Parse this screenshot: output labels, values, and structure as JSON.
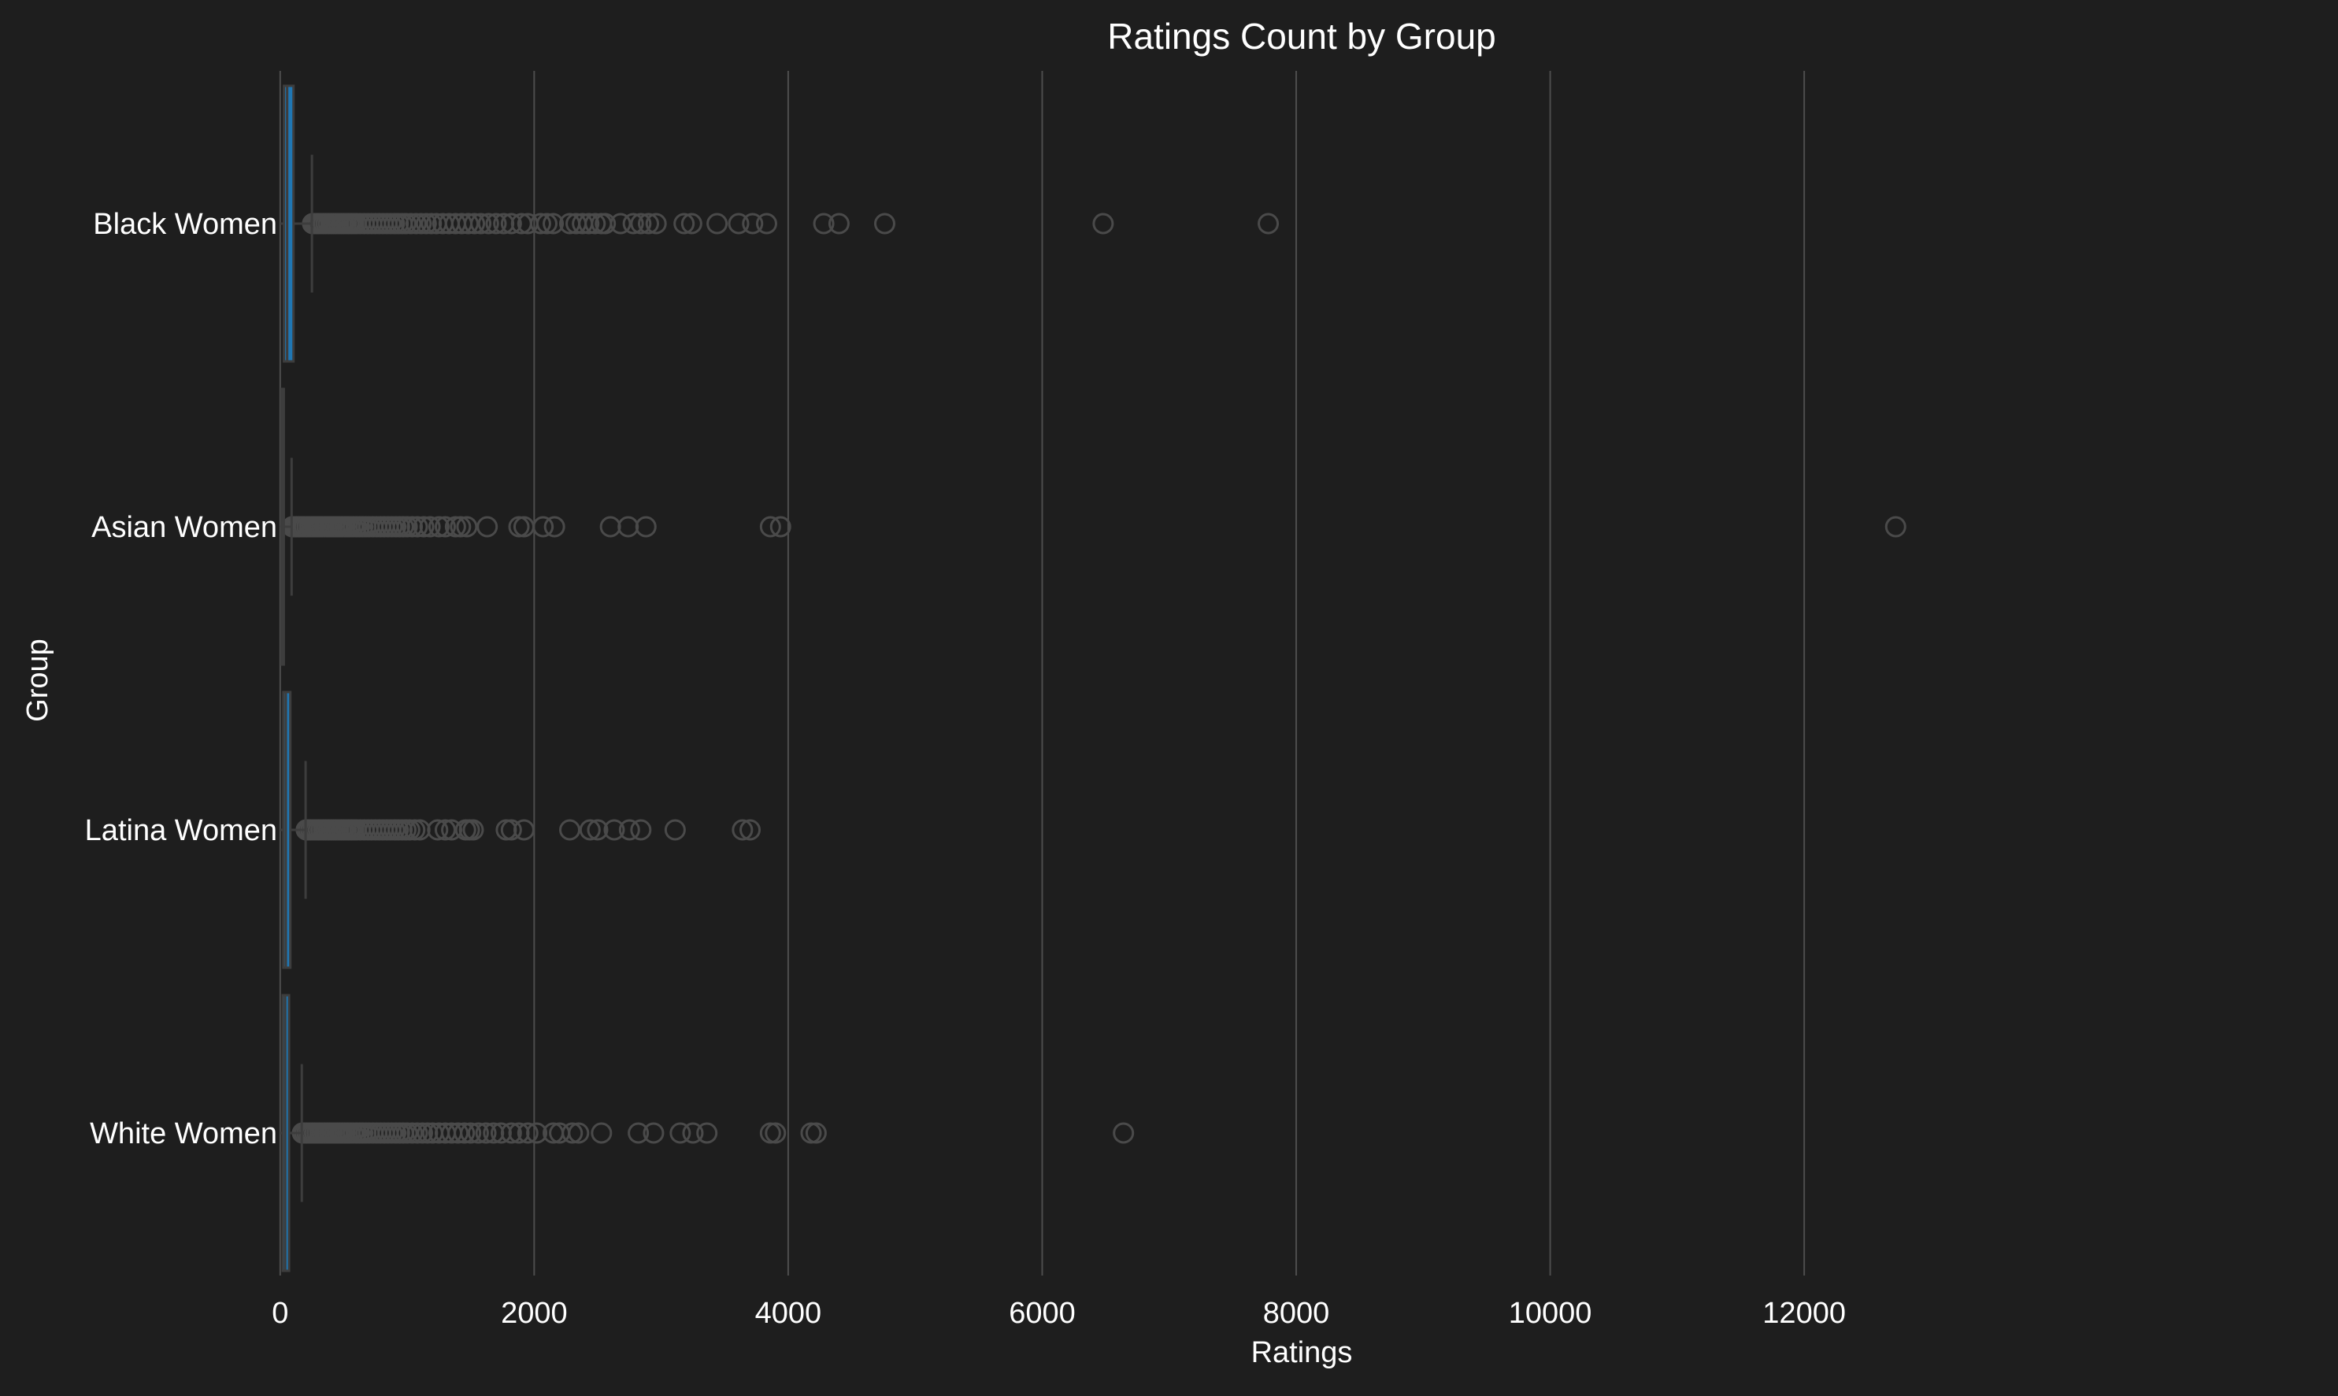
{
  "chart_data": {
    "type": "boxplot",
    "orientation": "horizontal",
    "title": "Ratings Count by Group",
    "xlabel": "Ratings",
    "ylabel": "Group",
    "xlim": [
      -160,
      13450
    ],
    "xticks": [
      0,
      2000,
      4000,
      6000,
      8000,
      10000,
      12000
    ],
    "xtick_labels": [
      "0",
      "2000",
      "4000",
      "6000",
      "8000",
      "10000",
      "12000"
    ],
    "grid": "vertical",
    "legend": "none",
    "colors": {
      "background": "#1e1e1e",
      "box_fill": "#1f77b4",
      "box_edge": "#3d3d3d",
      "grid": "#4d4d4d",
      "outlier_edge": "#4a4a4a",
      "text": "#ffffff"
    },
    "categories": [
      "Black Women",
      "Asian Women",
      "Latina Women",
      "White Women"
    ],
    "boxes": [
      {
        "name": "Black Women",
        "whisker_low": 0,
        "q1": 30,
        "median": 55,
        "q3": 105,
        "whisker_high": 250,
        "outliers": [
          255,
          270,
          285,
          300,
          320,
          340,
          360,
          380,
          400,
          420,
          440,
          460,
          480,
          500,
          520,
          540,
          560,
          580,
          600,
          630,
          660,
          690,
          720,
          750,
          780,
          810,
          840,
          870,
          900,
          930,
          960,
          990,
          1030,
          1070,
          1110,
          1150,
          1190,
          1230,
          1280,
          1330,
          1380,
          1430,
          1480,
          1530,
          1580,
          1640,
          1700,
          1760,
          1820,
          1900,
          1950,
          2050,
          2100,
          2150,
          2280,
          2330,
          2380,
          2430,
          2480,
          2530,
          2560,
          2680,
          2780,
          2840,
          2900,
          2960,
          3180,
          3240,
          3440,
          3610,
          3720,
          3830,
          4280,
          4400,
          4760,
          6480,
          7780
        ]
      },
      {
        "name": "Asian Women",
        "whisker_low": 0,
        "q1": 10,
        "median": 15,
        "q3": 25,
        "whisker_high": 90,
        "outliers": [
          95,
          105,
          115,
          130,
          145,
          160,
          175,
          190,
          210,
          230,
          250,
          270,
          290,
          310,
          330,
          350,
          370,
          390,
          410,
          430,
          450,
          470,
          490,
          510,
          530,
          550,
          575,
          600,
          625,
          650,
          675,
          700,
          730,
          760,
          790,
          820,
          850,
          880,
          910,
          940,
          970,
          1000,
          1040,
          1080,
          1130,
          1180,
          1250,
          1300,
          1380,
          1420,
          1470,
          1630,
          1880,
          1920,
          2070,
          2160,
          2600,
          2740,
          2880,
          3860,
          3940,
          12720
        ]
      },
      {
        "name": "Latina Women",
        "whisker_low": 0,
        "q1": 25,
        "median": 45,
        "q3": 80,
        "whisker_high": 200,
        "outliers": [
          205,
          220,
          240,
          260,
          280,
          300,
          320,
          340,
          360,
          380,
          400,
          420,
          440,
          460,
          480,
          500,
          520,
          540,
          560,
          580,
          600,
          630,
          660,
          690,
          720,
          750,
          780,
          810,
          840,
          870,
          900,
          930,
          960,
          990,
          1020,
          1060,
          1100,
          1240,
          1300,
          1350,
          1460,
          1490,
          1520,
          1780,
          1820,
          1920,
          2280,
          2440,
          2500,
          2630,
          2750,
          2840,
          3110,
          3640,
          3700
        ]
      },
      {
        "name": "White Women",
        "whisker_low": 0,
        "q1": 20,
        "median": 40,
        "q3": 70,
        "whisker_high": 170,
        "outliers": [
          175,
          190,
          210,
          230,
          250,
          270,
          290,
          310,
          330,
          350,
          370,
          390,
          410,
          430,
          450,
          470,
          490,
          510,
          530,
          550,
          575,
          600,
          625,
          650,
          675,
          700,
          730,
          760,
          790,
          820,
          850,
          880,
          910,
          940,
          970,
          1000,
          1040,
          1080,
          1120,
          1160,
          1200,
          1250,
          1300,
          1350,
          1400,
          1450,
          1500,
          1560,
          1620,
          1680,
          1740,
          1820,
          1880,
          1950,
          2020,
          2150,
          2200,
          2300,
          2350,
          2530,
          2820,
          2940,
          3150,
          3250,
          3360,
          3860,
          3900,
          4180,
          4220,
          6640
        ]
      }
    ]
  }
}
